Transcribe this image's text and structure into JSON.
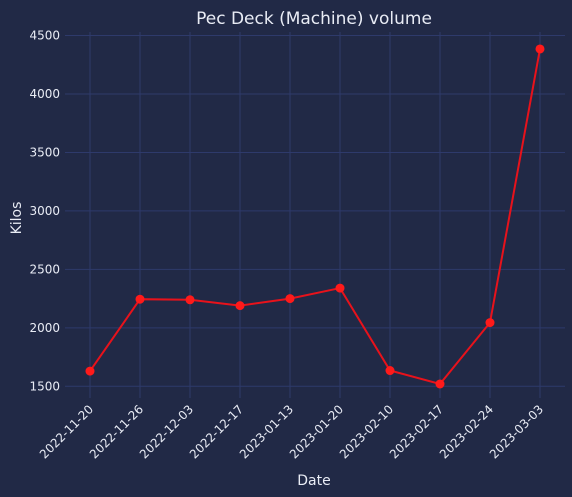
{
  "chart_data": {
    "type": "line",
    "title": "Pec Deck (Machine) volume",
    "xlabel": "Date",
    "ylabel": "Kilos",
    "x": [
      "2022-11-20",
      "2022-11-26",
      "2022-12-03",
      "2022-12-17",
      "2023-01-13",
      "2023-01-20",
      "2023-02-10",
      "2023-02-17",
      "2023-02-24",
      "2023-03-03"
    ],
    "series": [
      {
        "values": [
          1630,
          2245,
          2240,
          2190,
          2250,
          2340,
          1635,
          1520,
          2045,
          4385
        ]
      }
    ],
    "yticks": [
      1500,
      2000,
      2500,
      3000,
      3500,
      4000,
      4500
    ],
    "ylim": [
      1400,
      4530
    ],
    "grid": true,
    "colors": {
      "background": "#212946",
      "grid": "#2e3a6b",
      "line": "#e8121b",
      "marker": "#ff1a1a",
      "text": "#e9ecf5"
    }
  }
}
